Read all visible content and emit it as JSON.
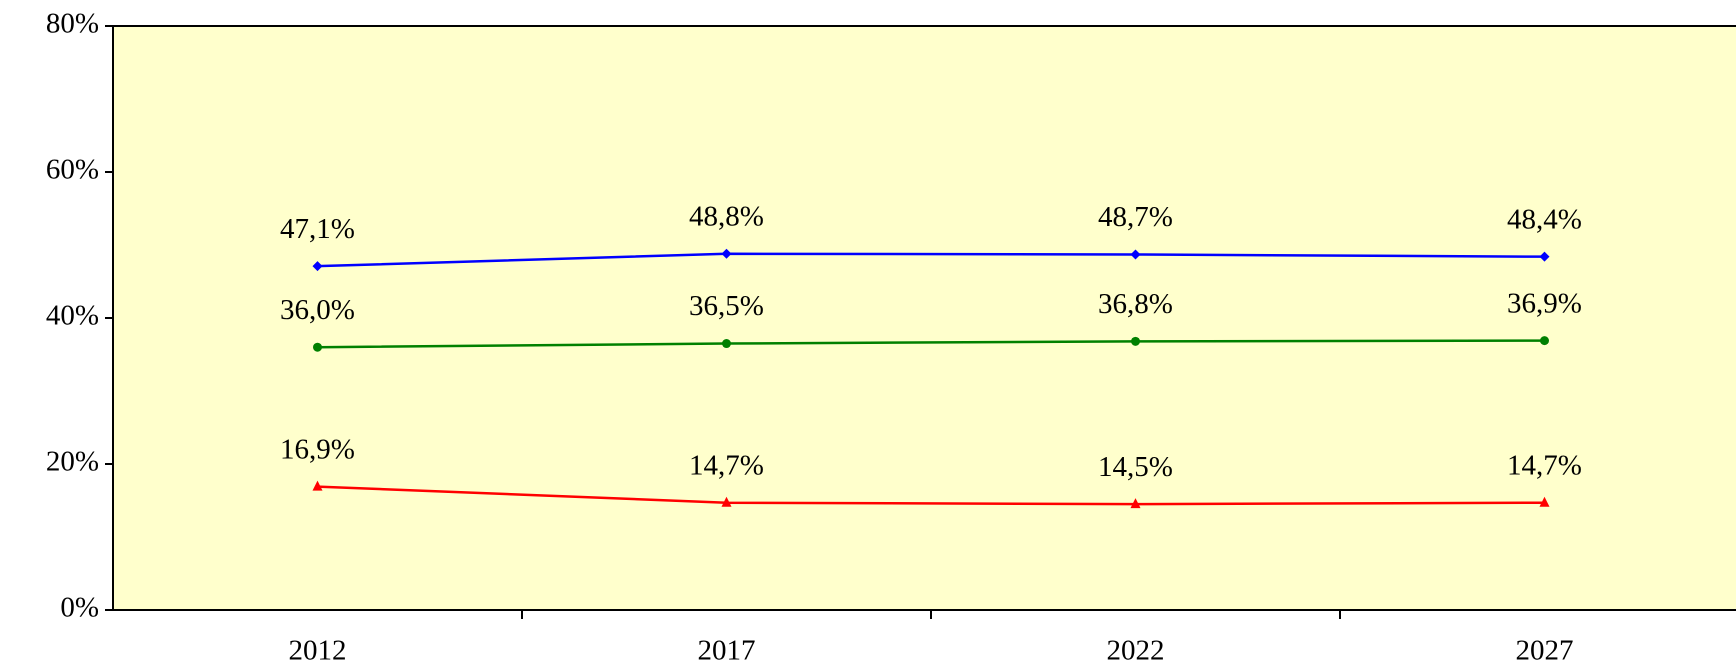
{
  "chart_data": {
    "type": "line",
    "categories": [
      "2012",
      "2017",
      "2022",
      "2027"
    ],
    "series": [
      {
        "color": "#0000ff",
        "marker": "diamond",
        "values": [
          47.1,
          48.8,
          48.7,
          48.4
        ],
        "value_labels": [
          "47,1%",
          "48,8%",
          "48,7%",
          "48,4%"
        ]
      },
      {
        "color": "#008000",
        "marker": "circle",
        "values": [
          36.0,
          36.5,
          36.8,
          36.9
        ],
        "value_labels": [
          "36,0%",
          "36,5%",
          "36,8%",
          "36,9%"
        ]
      },
      {
        "color": "#ff0000",
        "marker": "triangle",
        "values": [
          16.9,
          14.7,
          14.5,
          14.7
        ],
        "value_labels": [
          "16,9%",
          "14,7%",
          "14,5%",
          "14,7%"
        ]
      }
    ],
    "ylim": [
      0,
      80
    ],
    "yticks": [
      {
        "value": 0,
        "label": "0%"
      },
      {
        "value": 20,
        "label": "20%"
      },
      {
        "value": 40,
        "label": "40%"
      },
      {
        "value": 60,
        "label": "60%"
      },
      {
        "value": 80,
        "label": "80%"
      }
    ],
    "plot_background": "#ffffcc"
  }
}
